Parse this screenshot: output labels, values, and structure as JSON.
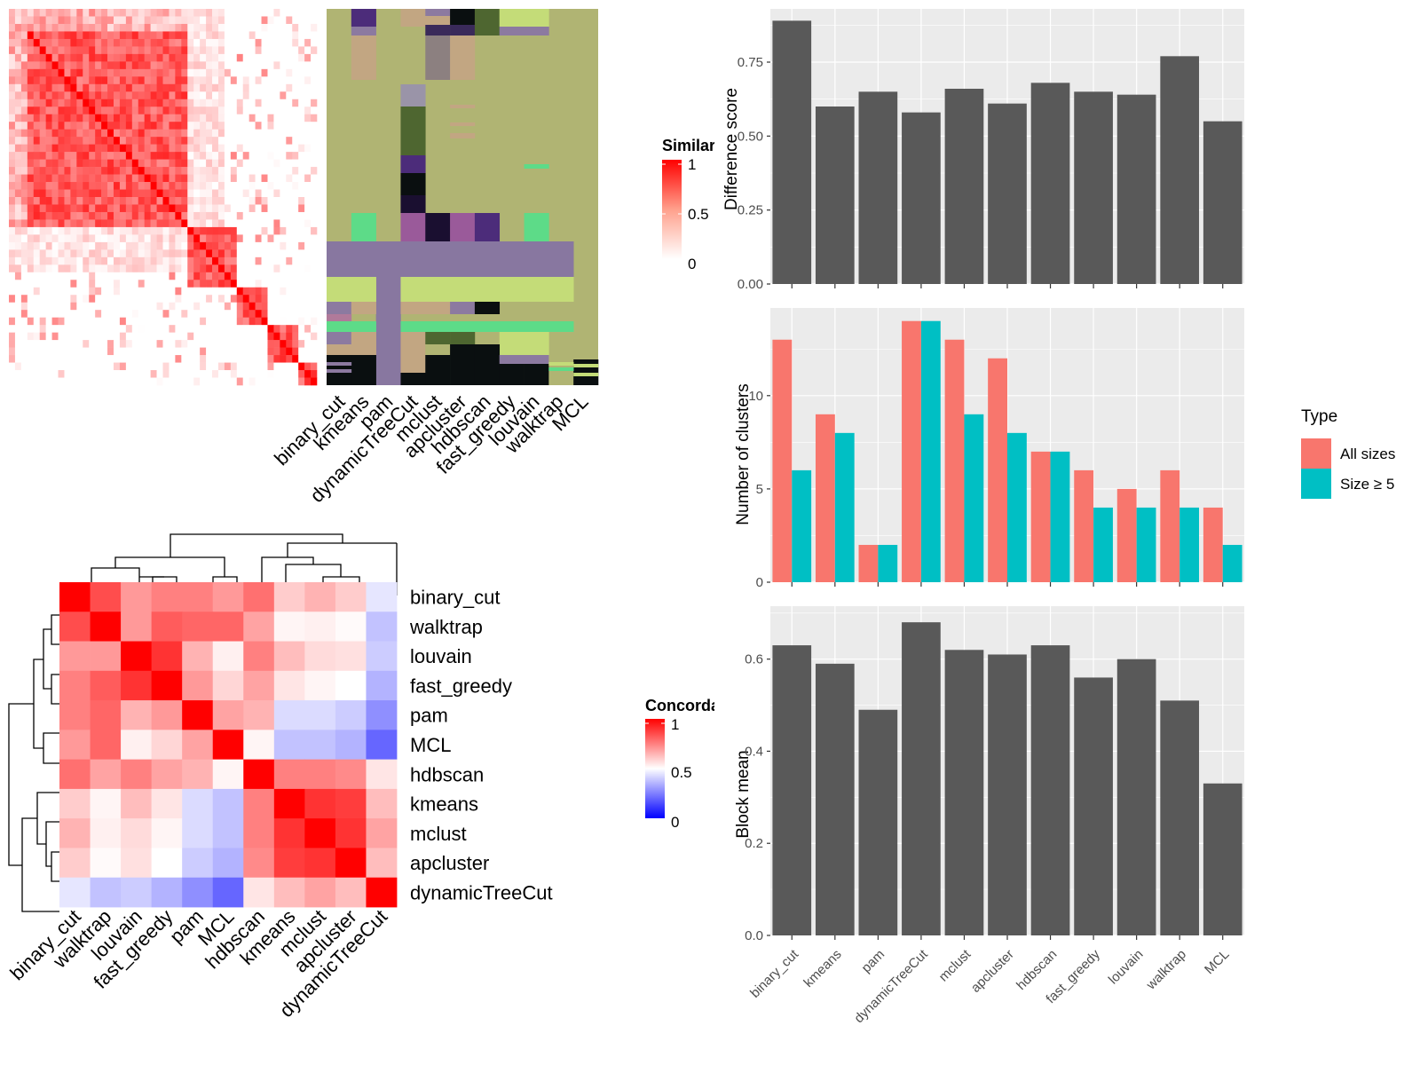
{
  "methods_top": [
    "binary_cut",
    "kmeans",
    "pam",
    "dynamicTreeCut",
    "mclust",
    "apcluster",
    "hdbscan",
    "fast_greedy",
    "louvain",
    "walktrap",
    "MCL"
  ],
  "similarity_legend": {
    "title": "Similarity",
    "ticks": [
      "1",
      "0.5",
      "0"
    ]
  },
  "concordance_legend": {
    "title": "Concordance",
    "ticks": [
      "1",
      "0.5",
      "0"
    ]
  },
  "concordance_order": [
    "binary_cut",
    "walktrap",
    "louvain",
    "fast_greedy",
    "pam",
    "MCL",
    "hdbscan",
    "kmeans",
    "mclust",
    "apcluster",
    "dynamicTreeCut"
  ],
  "colors": {
    "bar": "#595959",
    "all_sizes": "#F8766D",
    "size_ge5": "#00BFC4",
    "panel_bg": "#EBEBEB",
    "red": "#FF0000",
    "blue": "#0000FF"
  },
  "chart_data": [
    {
      "type": "heatmap",
      "title": "",
      "rows": [
        "binary_cut",
        "walktrap",
        "louvain",
        "fast_greedy",
        "pam",
        "MCL",
        "hdbscan",
        "kmeans",
        "mclust",
        "apcluster",
        "dynamicTreeCut"
      ],
      "cols": [
        "binary_cut",
        "walktrap",
        "louvain",
        "fast_greedy",
        "pam",
        "MCL",
        "hdbscan",
        "kmeans",
        "mclust",
        "apcluster",
        "dynamicTreeCut"
      ],
      "values": [
        [
          1.0,
          0.85,
          0.7,
          0.75,
          0.75,
          0.7,
          0.78,
          0.6,
          0.65,
          0.6,
          0.45
        ],
        [
          0.85,
          1.0,
          0.7,
          0.82,
          0.8,
          0.8,
          0.68,
          0.52,
          0.53,
          0.51,
          0.38
        ],
        [
          0.7,
          0.7,
          1.0,
          0.9,
          0.65,
          0.53,
          0.75,
          0.63,
          0.57,
          0.56,
          0.4
        ],
        [
          0.75,
          0.82,
          0.9,
          1.0,
          0.7,
          0.58,
          0.68,
          0.55,
          0.52,
          0.5,
          0.35
        ],
        [
          0.75,
          0.8,
          0.65,
          0.7,
          1.0,
          0.68,
          0.65,
          0.43,
          0.43,
          0.4,
          0.28
        ],
        [
          0.7,
          0.8,
          0.53,
          0.58,
          0.68,
          1.0,
          0.52,
          0.38,
          0.38,
          0.35,
          0.2
        ],
        [
          0.78,
          0.68,
          0.75,
          0.68,
          0.65,
          0.52,
          1.0,
          0.75,
          0.75,
          0.73,
          0.55
        ],
        [
          0.6,
          0.52,
          0.63,
          0.55,
          0.43,
          0.38,
          0.75,
          1.0,
          0.9,
          0.88,
          0.63
        ],
        [
          0.65,
          0.53,
          0.57,
          0.52,
          0.43,
          0.38,
          0.75,
          0.9,
          1.0,
          0.9,
          0.68
        ],
        [
          0.6,
          0.51,
          0.56,
          0.5,
          0.4,
          0.35,
          0.73,
          0.88,
          0.9,
          1.0,
          0.63
        ],
        [
          0.45,
          0.38,
          0.4,
          0.35,
          0.28,
          0.2,
          0.55,
          0.63,
          0.68,
          0.63,
          1.0
        ]
      ],
      "color_scale": {
        "0": "#0000FF",
        "0.5": "#FFFFFF",
        "1": "#FF0000"
      },
      "legend": "Concordance"
    },
    {
      "type": "bar",
      "title": "",
      "xlabel": "",
      "ylabel": "Difference score",
      "categories": [
        "binary_cut",
        "kmeans",
        "pam",
        "dynamicTreeCut",
        "mclust",
        "apcluster",
        "hdbscan",
        "fast_greedy",
        "louvain",
        "walktrap",
        "MCL"
      ],
      "values": [
        0.89,
        0.6,
        0.65,
        0.58,
        0.66,
        0.61,
        0.68,
        0.65,
        0.64,
        0.77,
        0.55
      ],
      "ylim": [
        0,
        0.93
      ],
      "yticks": [
        "0.00",
        "0.25",
        "0.50",
        "0.75"
      ],
      "grid": true
    },
    {
      "type": "bar",
      "title": "",
      "xlabel": "",
      "ylabel": "Number of clusters",
      "categories": [
        "binary_cut",
        "kmeans",
        "pam",
        "dynamicTreeCut",
        "mclust",
        "apcluster",
        "hdbscan",
        "fast_greedy",
        "louvain",
        "walktrap",
        "MCL"
      ],
      "series": [
        {
          "name": "All sizes",
          "values": [
            13,
            9,
            2,
            14,
            13,
            12,
            7,
            6,
            5,
            6,
            4
          ]
        },
        {
          "name": "Size ≥ 5",
          "values": [
            6,
            8,
            2,
            14,
            9,
            8,
            7,
            4,
            4,
            4,
            2
          ]
        }
      ],
      "ylim": [
        0,
        14.7
      ],
      "yticks": [
        "0",
        "5",
        "10"
      ],
      "legend_title": "Type",
      "legend_position": "right",
      "grid": true
    },
    {
      "type": "bar",
      "title": "",
      "xlabel": "",
      "ylabel": "Block mean",
      "categories": [
        "binary_cut",
        "kmeans",
        "pam",
        "dynamicTreeCut",
        "mclust",
        "apcluster",
        "hdbscan",
        "fast_greedy",
        "louvain",
        "walktrap",
        "MCL"
      ],
      "values": [
        0.63,
        0.59,
        0.49,
        0.68,
        0.62,
        0.61,
        0.63,
        0.56,
        0.6,
        0.51,
        0.33
      ],
      "ylim": [
        0,
        0.715
      ],
      "yticks": [
        "0.0",
        "0.2",
        "0.4",
        "0.6"
      ],
      "grid": true
    }
  ]
}
